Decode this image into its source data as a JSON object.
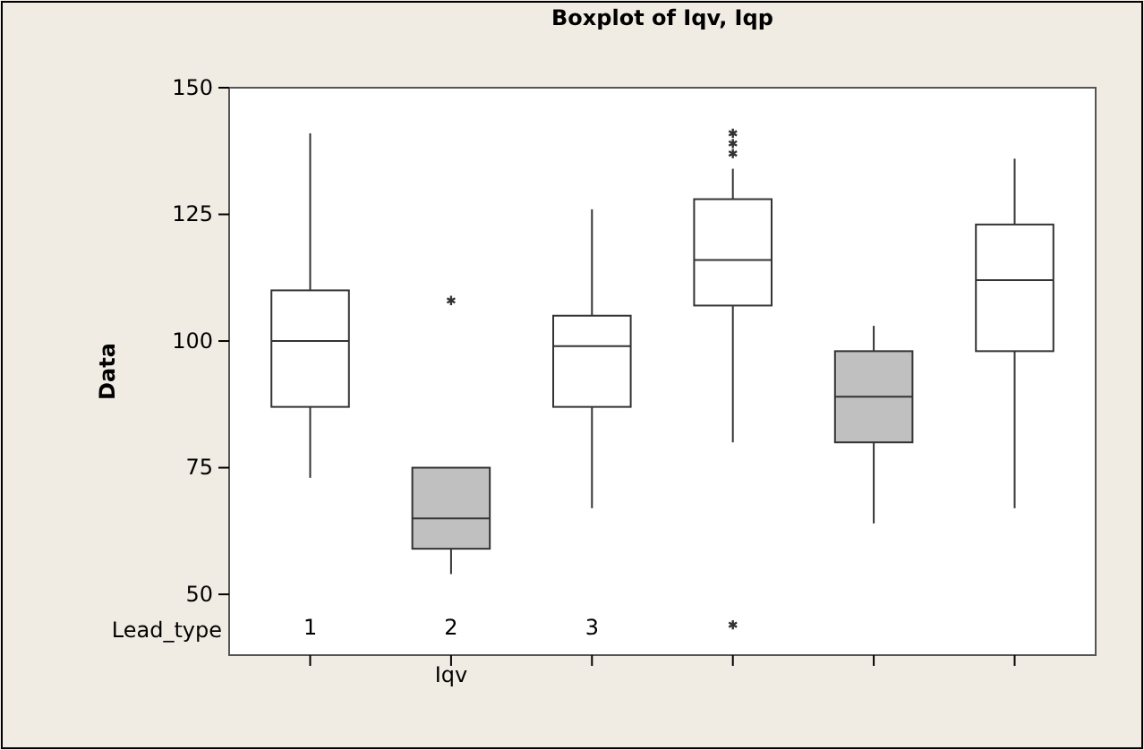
{
  "chart_data": {
    "type": "box",
    "title": "Boxplot of Iqv, Iqp",
    "xlabel": "Iqv",
    "ylabel": "Data",
    "annotations": [
      "Lead_type"
    ],
    "categories": [
      "1",
      "2",
      "3",
      null,
      null,
      null
    ],
    "colors": [
      "#ffffff",
      "#c0c0c0",
      "#ffffff",
      "#ffffff",
      "#c0c0c0",
      "#ffffff"
    ],
    "boxes": [
      {
        "low": 73,
        "q1": 87,
        "median": 100,
        "q3": 110,
        "high": 141
      },
      {
        "low": 54,
        "q1": 59,
        "median": 65,
        "q3": 75,
        "high": 75,
        "outliers": [
          108
        ]
      },
      {
        "low": 67,
        "q1": 87,
        "median": 99,
        "q3": 105,
        "high": 126
      },
      {
        "low": 80,
        "q1": 107,
        "median": 116,
        "q3": 128,
        "high": 134,
        "outliers": [
          141,
          139,
          137,
          44
        ]
      },
      {
        "low": 64,
        "q1": 80,
        "median": 89,
        "q3": 98,
        "high": 103
      },
      {
        "low": 67,
        "q1": 98,
        "median": 112,
        "q3": 123,
        "high": 136
      }
    ],
    "ylim": [
      38,
      150
    ],
    "yticks": [
      50,
      75,
      100,
      125,
      150
    ],
    "grid": false
  }
}
